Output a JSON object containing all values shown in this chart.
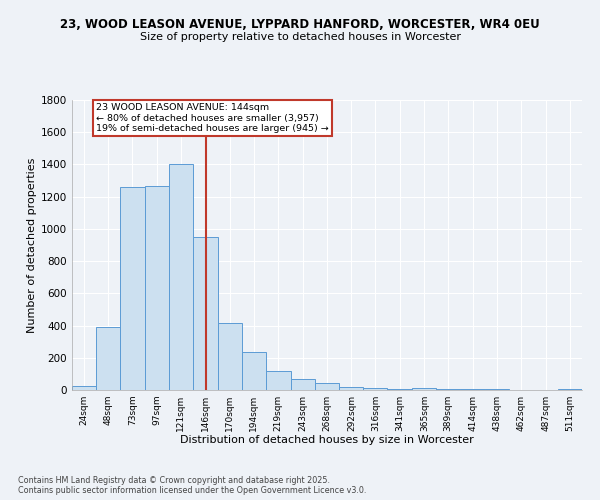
{
  "title_line1": "23, WOOD LEASON AVENUE, LYPPARD HANFORD, WORCESTER, WR4 0EU",
  "title_line2": "Size of property relative to detached houses in Worcester",
  "xlabel": "Distribution of detached houses by size in Worcester",
  "ylabel": "Number of detached properties",
  "bar_color": "#cce0f0",
  "bar_edge_color": "#5b9bd5",
  "vline_color": "#c0392b",
  "annotation_text": "23 WOOD LEASON AVENUE: 144sqm\n← 80% of detached houses are smaller (3,957)\n19% of semi-detached houses are larger (945) →",
  "annotation_box_color": "white",
  "annotation_box_edge": "#c0392b",
  "categories": [
    "24sqm",
    "48sqm",
    "73sqm",
    "97sqm",
    "121sqm",
    "146sqm",
    "170sqm",
    "194sqm",
    "219sqm",
    "243sqm",
    "268sqm",
    "292sqm",
    "316sqm",
    "341sqm",
    "365sqm",
    "389sqm",
    "414sqm",
    "438sqm",
    "462sqm",
    "487sqm",
    "511sqm"
  ],
  "bin_edges": [
    12,
    36,
    60,
    85,
    109,
    133,
    158,
    182,
    206,
    231,
    255,
    280,
    304,
    328,
    353,
    377,
    401,
    426,
    450,
    474,
    499,
    523
  ],
  "values": [
    25,
    390,
    1260,
    1265,
    1400,
    950,
    415,
    235,
    115,
    70,
    45,
    20,
    15,
    5,
    10,
    5,
    5,
    5,
    3,
    2,
    5
  ],
  "ylim": [
    0,
    1800
  ],
  "yticks": [
    0,
    200,
    400,
    600,
    800,
    1000,
    1200,
    1400,
    1600,
    1800
  ],
  "footer_text": "Contains HM Land Registry data © Crown copyright and database right 2025.\nContains public sector information licensed under the Open Government Licence v3.0.",
  "bg_color": "#eef2f7",
  "grid_color": "white"
}
